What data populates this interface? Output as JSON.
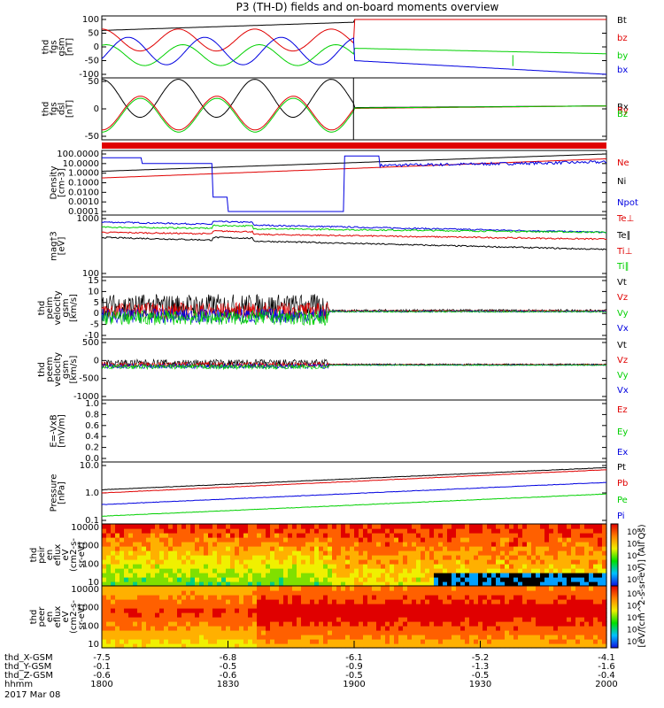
{
  "title": "P3 (TH-D) fields and on-board moments overview",
  "colors": {
    "black": "#000000",
    "red": "#e00000",
    "green": "#00d000",
    "blue": "#0000e0"
  },
  "chart_data": [
    {
      "type": "line",
      "panel": "fgs-gsm",
      "ylabel": [
        "thd",
        "fgs",
        "gsm",
        "[nT]"
      ],
      "yticks": [
        "100",
        "50",
        "0",
        "-50",
        "-100"
      ],
      "ylim": [
        -100,
        100
      ],
      "series": [
        {
          "name": "Bt",
          "color": "black"
        },
        {
          "name": "bz",
          "color": "red"
        },
        {
          "name": "by",
          "color": "green"
        },
        {
          "name": "bx",
          "color": "blue"
        }
      ]
    },
    {
      "type": "line",
      "panel": "fgs-dsl",
      "ylabel": [
        "thd",
        "fgs",
        "dsl",
        "[nT]"
      ],
      "yticks": [
        "50",
        "0",
        "-50"
      ],
      "ylim": [
        -80,
        90
      ],
      "series": [
        {
          "name": "Bx",
          "color": "black"
        },
        {
          "name": "By",
          "color": "red"
        },
        {
          "name": "Bz",
          "color": "green"
        }
      ]
    },
    {
      "type": "bar",
      "panel": "spin-flag",
      "color": "red"
    },
    {
      "type": "line",
      "panel": "density",
      "yscale": "log",
      "ylabel": [
        "Density",
        "[cm-3]"
      ],
      "yticks": [
        "100.0000",
        "10.0000",
        "1.0000",
        "0.1000",
        "0.0100",
        "0.0010",
        "0.0001"
      ],
      "series": [
        {
          "name": "Ne",
          "color": "red"
        },
        {
          "name": "Ni",
          "color": "black"
        },
        {
          "name": "Npot",
          "color": "blue"
        }
      ]
    },
    {
      "type": "line",
      "panel": "temperature",
      "yscale": "log",
      "ylabel": [
        "mag†3",
        "[eV]"
      ],
      "yticks": [
        "1000",
        "100"
      ],
      "series": [
        {
          "name": "Te⊥",
          "color": "red"
        },
        {
          "name": "Te∥",
          "color": "black"
        },
        {
          "name": "Ti⊥",
          "color": "red"
        },
        {
          "name": "Ti∥",
          "color": "green"
        }
      ]
    },
    {
      "type": "line",
      "panel": "peim-velocity",
      "ylabel": [
        "thd",
        "peim",
        "velocity",
        "gsm",
        "[km/s]"
      ],
      "yticks": [
        "15",
        "10",
        "5",
        "0",
        "-5",
        "-10"
      ],
      "ylim": [
        -12,
        15
      ],
      "series": [
        {
          "name": "Vt",
          "color": "black"
        },
        {
          "name": "Vz",
          "color": "red"
        },
        {
          "name": "Vy",
          "color": "green"
        },
        {
          "name": "Vx",
          "color": "blue"
        }
      ]
    },
    {
      "type": "line",
      "panel": "peem-velocity",
      "ylabel": [
        "thd",
        "peem",
        "velocity",
        "gsm",
        "[km/s]"
      ],
      "yticks": [
        "500",
        "0",
        "-500",
        "-1000"
      ],
      "ylim": [
        -1000,
        700
      ],
      "series": [
        {
          "name": "Vt",
          "color": "black"
        },
        {
          "name": "Vz",
          "color": "red"
        },
        {
          "name": "Vy",
          "color": "green"
        },
        {
          "name": "Vx",
          "color": "blue"
        }
      ]
    },
    {
      "type": "line",
      "panel": "efield",
      "ylabel": [
        "E=-VxB",
        "[mV/m]"
      ],
      "yticks": [
        "1.0",
        "0.8",
        "0.6",
        "0.4",
        "0.2",
        "0.0"
      ],
      "ylim": [
        0,
        1
      ],
      "series": [
        {
          "name": "Ez",
          "color": "red"
        },
        {
          "name": "Ey",
          "color": "green"
        },
        {
          "name": "Ex",
          "color": "blue"
        }
      ]
    },
    {
      "type": "line",
      "panel": "pressure",
      "yscale": "log",
      "ylabel": [
        "Pressure",
        "[nPa]"
      ],
      "yticks": [
        "10.0",
        "1.0",
        "0.1"
      ],
      "series": [
        {
          "name": "Pt",
          "color": "black"
        },
        {
          "name": "Pb",
          "color": "red"
        },
        {
          "name": "Pe",
          "color": "green"
        },
        {
          "name": "Pi",
          "color": "blue"
        }
      ]
    },
    {
      "type": "heatmap",
      "panel": "peir-eflux",
      "yscale": "log",
      "ylabel": [
        "thd",
        "peir",
        "en",
        "eflux",
        "eV",
        "(cm2-s-",
        "sr-eV)"
      ],
      "yticks": [
        "10000",
        "1000",
        "100",
        "10"
      ],
      "colorbar": {
        "ticks": [
          "10⁸",
          "10⁶",
          "10⁴",
          "10²",
          "10⁰"
        ],
        "label": "[eV/(cm^2-s-sr-eV)] (All Qs)"
      }
    },
    {
      "type": "heatmap",
      "panel": "peer-eflux",
      "yscale": "log",
      "ylabel": [
        "thd",
        "peer",
        "en",
        "eflux",
        "eV",
        "(cm2-s-",
        "sr-eV)"
      ],
      "yticks": [
        "10000",
        "1000",
        "100",
        "10"
      ],
      "colorbar": {
        "ticks": [
          "10⁸",
          "10⁶",
          "10⁴",
          "10²",
          "10⁰"
        ],
        "label": "[eV/(cm^2-s-sr-eV)] (All Qs)"
      }
    }
  ],
  "axis": {
    "rows": [
      {
        "label": "thd_X-GSM",
        "values": [
          "-7.5",
          "-6.8",
          "-6.1",
          "-5.2",
          "-4.1"
        ]
      },
      {
        "label": "thd_Y-GSM",
        "values": [
          "-0.1",
          "-0.5",
          "-0.9",
          "-1.3",
          "-1.6"
        ]
      },
      {
        "label": "thd_Z-GSM",
        "values": [
          "-0.6",
          "-0.6",
          "-0.5",
          "-0.5",
          "-0.4"
        ]
      },
      {
        "label": "hhmm",
        "values": [
          "1800",
          "1830",
          "1900",
          "1930",
          "2000"
        ]
      }
    ],
    "date": "2017 Mar 08"
  }
}
